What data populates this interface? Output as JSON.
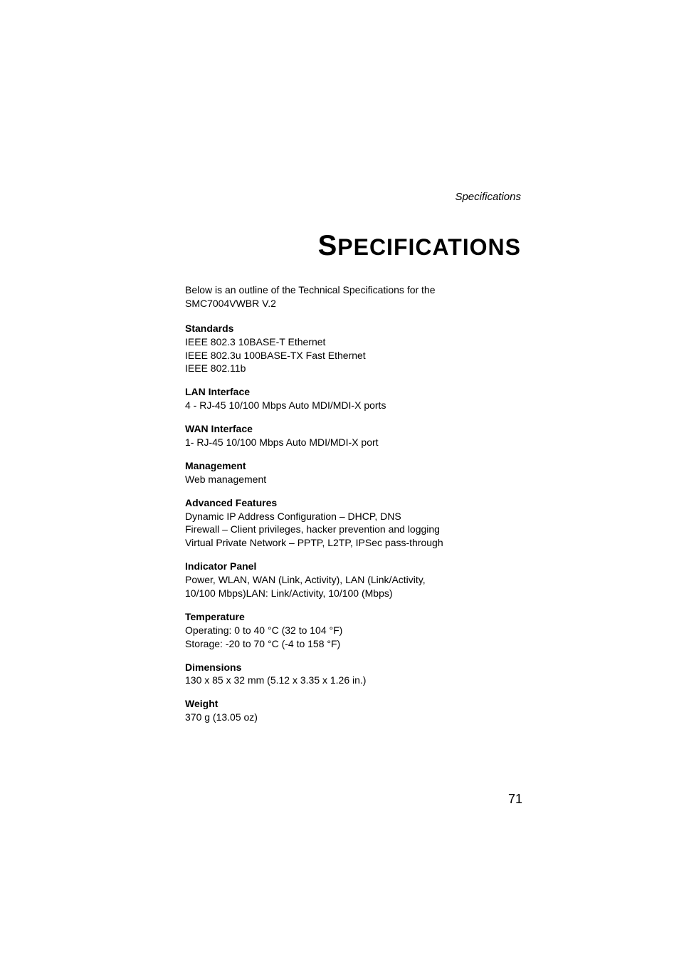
{
  "running_header": "Specifications",
  "page_title_first": "S",
  "page_title_rest": "PECIFICATIONS",
  "intro_line1": "Below is an outline of the Technical Specifications for the",
  "intro_line2": "SMC7004VWBR V.2",
  "sections": {
    "standards": {
      "heading": "Standards",
      "line1": "IEEE 802.3 10BASE-T Ethernet",
      "line2": "IEEE 802.3u 100BASE-TX Fast Ethernet",
      "line3": "IEEE 802.11b"
    },
    "lan_interface": {
      "heading": "LAN Interface",
      "line1": "4 - RJ-45 10/100 Mbps Auto MDI/MDI-X ports"
    },
    "wan_interface": {
      "heading": "WAN Interface",
      "line1": "1- RJ-45 10/100 Mbps Auto MDI/MDI-X port"
    },
    "management": {
      "heading": "Management",
      "line1": "Web management"
    },
    "advanced_features": {
      "heading": "Advanced Features",
      "line1": "Dynamic IP Address Configuration – DHCP, DNS",
      "line2": "Firewall – Client privileges, hacker prevention and logging",
      "line3": "Virtual Private Network – PPTP, L2TP, IPSec pass-through"
    },
    "indicator_panel": {
      "heading": "Indicator Panel",
      "line1": "Power, WLAN, WAN (Link, Activity), LAN (Link/Activity,",
      "line2": "10/100 Mbps)LAN: Link/Activity, 10/100 (Mbps)"
    },
    "temperature": {
      "heading": "Temperature",
      "line1": "Operating: 0 to 40 °C (32 to 104 °F)",
      "line2": "Storage: -20 to 70 °C (-4 to 158 °F)"
    },
    "dimensions": {
      "heading": "Dimensions",
      "line1": "130 x 85 x 32 mm (5.12 x 3.35 x 1.26 in.)"
    },
    "weight": {
      "heading": "Weight",
      "line1": "370 g (13.05 oz)"
    }
  },
  "page_number": "71",
  "colors": {
    "background": "#ffffff",
    "text": "#000000"
  },
  "typography": {
    "body_fontsize": 14,
    "heading_fontsize": 14,
    "title_fontsize": 32,
    "title_first_letter_fontsize": 40,
    "running_header_fontsize": 15,
    "page_number_fontsize": 18
  }
}
